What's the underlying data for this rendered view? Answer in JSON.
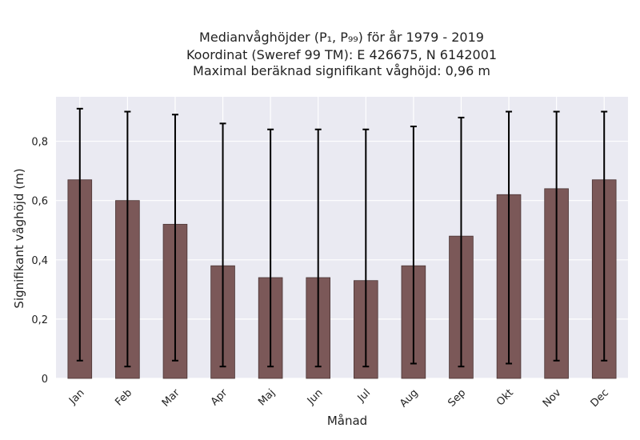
{
  "chart_data": {
    "type": "bar",
    "title_lines": [
      "Medianvåghöjder (P₁, P₉₉) för år 1979 - 2019",
      "Koordinat (Sweref 99 TM): E 426675, N 6142001",
      "Maximal beräknad signifikant våghöjd: 0,96 m"
    ],
    "xlabel": "Månad",
    "ylabel": "Signifikant våghöjd (m)",
    "ylim": [
      0,
      0.95
    ],
    "yticks": [
      0,
      0.2,
      0.4,
      0.6,
      0.8
    ],
    "ytick_labels": [
      "0",
      "0,2",
      "0,4",
      "0,6",
      "0,8"
    ],
    "categories": [
      "Jan",
      "Feb",
      "Mar",
      "Apr",
      "Maj",
      "Jun",
      "Jul",
      "Aug",
      "Sep",
      "Okt",
      "Nov",
      "Dec"
    ],
    "values": [
      0.67,
      0.6,
      0.52,
      0.38,
      0.34,
      0.34,
      0.33,
      0.38,
      0.48,
      0.62,
      0.64,
      0.67
    ],
    "p1": [
      0.06,
      0.04,
      0.06,
      0.04,
      0.04,
      0.04,
      0.04,
      0.05,
      0.04,
      0.05,
      0.06,
      0.06
    ],
    "p99": [
      0.91,
      0.9,
      0.89,
      0.86,
      0.84,
      0.84,
      0.84,
      0.85,
      0.88,
      0.9,
      0.9,
      0.9
    ],
    "grid": true,
    "colors": {
      "bar": "#7b5858",
      "bar_edge": "#4a3434",
      "background": "#eaeaf2",
      "grid": "#ffffff",
      "errorbar": "#000000"
    }
  }
}
